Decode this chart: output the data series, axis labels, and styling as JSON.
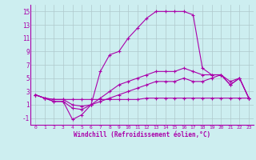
{
  "xlabel": "Windchill (Refroidissement éolien,°C)",
  "background_color": "#cdeef0",
  "grid_color": "#b0c8cc",
  "line_color": "#aa00aa",
  "xlim": [
    -0.5,
    23.5
  ],
  "ylim": [
    -2,
    16
  ],
  "yticks": [
    -1,
    1,
    3,
    5,
    7,
    9,
    11,
    13,
    15
  ],
  "xticks": [
    0,
    1,
    2,
    3,
    4,
    5,
    6,
    7,
    8,
    9,
    10,
    11,
    12,
    13,
    14,
    15,
    16,
    17,
    18,
    19,
    20,
    21,
    22,
    23
  ],
  "line1_x": [
    0,
    1,
    2,
    3,
    4,
    5,
    6,
    7,
    8,
    9,
    10,
    11,
    12,
    13,
    14,
    15,
    16,
    17,
    18,
    19,
    20,
    21,
    22,
    23
  ],
  "line1_y": [
    2.5,
    2.0,
    1.8,
    1.8,
    1.8,
    1.8,
    1.8,
    1.8,
    1.8,
    1.8,
    1.8,
    1.8,
    2.0,
    2.0,
    2.0,
    2.0,
    2.0,
    2.0,
    2.0,
    2.0,
    2.0,
    2.0,
    2.0,
    2.0
  ],
  "line2_x": [
    0,
    1,
    2,
    3,
    4,
    5,
    6,
    7,
    8,
    9,
    10,
    11,
    12,
    13,
    14,
    15,
    16,
    17,
    18,
    19,
    20,
    21,
    22,
    23
  ],
  "line2_y": [
    2.5,
    2.0,
    1.8,
    1.8,
    1.0,
    0.8,
    1.0,
    1.5,
    2.0,
    2.5,
    3.0,
    3.5,
    4.0,
    4.5,
    4.5,
    4.5,
    5.0,
    4.5,
    4.5,
    5.0,
    5.5,
    4.0,
    5.0,
    2.0
  ],
  "line3_x": [
    0,
    1,
    2,
    3,
    4,
    5,
    6,
    7,
    8,
    9,
    10,
    11,
    12,
    13,
    14,
    15,
    16,
    17,
    18,
    19,
    20,
    21,
    22,
    23
  ],
  "line3_y": [
    2.5,
    2.0,
    1.5,
    1.5,
    0.5,
    0.3,
    1.0,
    2.0,
    3.0,
    4.0,
    4.5,
    5.0,
    5.5,
    6.0,
    6.0,
    6.0,
    6.5,
    6.0,
    5.5,
    5.5,
    5.5,
    4.5,
    5.0,
    2.0
  ],
  "line4_x": [
    0,
    1,
    2,
    3,
    4,
    5,
    6,
    7,
    8,
    9,
    10,
    11,
    12,
    13,
    14,
    15,
    16,
    17,
    18,
    19,
    20,
    21,
    22,
    23
  ],
  "line4_y": [
    2.5,
    2.0,
    1.5,
    1.5,
    -1.2,
    -0.5,
    1.0,
    6.0,
    8.5,
    9.0,
    11.0,
    12.5,
    14.0,
    15.0,
    15.0,
    15.0,
    15.0,
    14.5,
    6.5,
    5.5,
    5.5,
    4.0,
    5.0,
    2.0
  ]
}
